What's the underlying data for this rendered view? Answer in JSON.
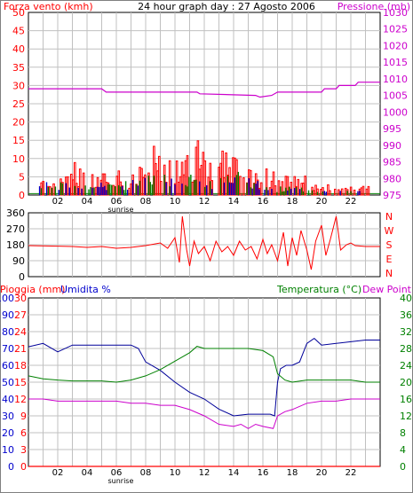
{
  "header": {
    "left": "Forza vento (kmh)",
    "center": "24 hour graph day : 27 Agosto 2006",
    "right": "Pressione (mb)"
  },
  "colors": {
    "wind_gust": "#ff0000",
    "wind_avg": "#0000cc",
    "wind_alt": "#008000",
    "pressure": "#cc00cc",
    "direction": "#ff0000",
    "rain": "#ff0000",
    "humidity": "#000099",
    "temperature": "#008000",
    "dewpoint": "#cc00cc",
    "grid": "#c0c0c0",
    "axis_red": "#ff0000",
    "axis_blue": "#0000cc",
    "axis_green": "#008000",
    "axis_mag": "#cc00cc"
  },
  "x_axis": {
    "tick_labels": [
      "02",
      "04",
      "06",
      "08",
      "10",
      "12",
      "14",
      "16",
      "18",
      "20",
      "22"
    ],
    "sunrise_label": "sunrise"
  },
  "chart_data": [
    {
      "type": "bar",
      "name": "wind-pressure",
      "left_axis": {
        "ticks": [
          "0",
          "5",
          "10",
          "15",
          "20",
          "25",
          "30",
          "35",
          "40",
          "45",
          "50"
        ],
        "ylim": [
          0,
          50
        ]
      },
      "right_axis": {
        "ticks": [
          "975",
          "980",
          "985",
          "990",
          "995",
          "1000",
          "1005",
          "1010",
          "1015",
          "1020",
          "1025",
          "1030"
        ],
        "ylim": [
          975,
          1030
        ]
      },
      "pressure_series": [
        [
          0,
          1007
        ],
        [
          5,
          1007
        ],
        [
          5.3,
          1006
        ],
        [
          11.5,
          1006
        ],
        [
          11.7,
          1005.5
        ],
        [
          15.5,
          1005
        ],
        [
          15.8,
          1004.5
        ],
        [
          16.6,
          1005
        ],
        [
          17,
          1006
        ],
        [
          20,
          1006
        ],
        [
          20.2,
          1007
        ],
        [
          21,
          1007
        ],
        [
          21.2,
          1008
        ],
        [
          22.3,
          1008
        ],
        [
          22.5,
          1009
        ],
        [
          24,
          1009
        ]
      ],
      "gust_profile": [
        [
          2.2,
          5
        ],
        [
          2.6,
          5
        ],
        [
          2.9,
          6
        ],
        [
          3.2,
          8
        ],
        [
          3.6,
          6
        ],
        [
          4,
          5
        ],
        [
          4.4,
          6
        ],
        [
          5.3,
          5
        ],
        [
          6.2,
          6
        ],
        [
          6.6,
          5
        ],
        [
          7.3,
          7
        ],
        [
          7.8,
          8
        ],
        [
          8.3,
          10
        ],
        [
          8.8,
          13
        ],
        [
          9.2,
          12
        ],
        [
          9.6,
          11
        ],
        [
          10.1,
          8
        ],
        [
          10.6,
          9
        ],
        [
          11,
          11
        ],
        [
          11.4,
          13
        ],
        [
          11.8,
          12
        ],
        [
          12.3,
          9
        ],
        [
          12.7,
          10
        ],
        [
          13.2,
          11
        ],
        [
          13.6,
          12
        ],
        [
          14,
          10
        ],
        [
          14.4,
          8
        ],
        [
          14.8,
          9
        ],
        [
          15.3,
          7
        ],
        [
          15.7,
          6
        ],
        [
          16.2,
          7
        ],
        [
          17,
          6
        ],
        [
          17.5,
          5
        ],
        [
          18,
          6
        ],
        [
          18.5,
          5
        ],
        [
          19.2,
          4
        ],
        [
          19.8,
          3
        ],
        [
          21,
          2
        ],
        [
          22,
          2
        ],
        [
          22.6,
          2
        ]
      ],
      "avg_profile": [
        [
          3,
          3
        ],
        [
          3.5,
          4
        ],
        [
          4,
          3
        ],
        [
          4.5,
          3
        ],
        [
          6,
          3
        ],
        [
          7.5,
          4
        ],
        [
          8.5,
          5
        ],
        [
          9.2,
          6
        ],
        [
          9.8,
          5
        ],
        [
          10.5,
          4
        ],
        [
          11.2,
          6
        ],
        [
          11.8,
          5
        ],
        [
          12.5,
          4
        ],
        [
          13.2,
          5
        ],
        [
          13.8,
          6
        ],
        [
          14.5,
          5
        ],
        [
          15.2,
          4
        ],
        [
          16,
          3
        ],
        [
          16.8,
          2
        ],
        [
          17.5,
          2
        ],
        [
          18.5,
          2
        ],
        [
          20,
          1
        ]
      ]
    },
    {
      "type": "line",
      "name": "wind-direction",
      "left_axis": {
        "ticks": [
          "0",
          "90",
          "180",
          "270",
          "360"
        ],
        "ylim": [
          0,
          360
        ]
      },
      "right_axis": {
        "ticks": [
          "N",
          "W",
          "S",
          "E",
          "N"
        ]
      },
      "series": [
        [
          0,
          175
        ],
        [
          2,
          172
        ],
        [
          3,
          170
        ],
        [
          4,
          165
        ],
        [
          5,
          170
        ],
        [
          6,
          160
        ],
        [
          7,
          165
        ],
        [
          8,
          175
        ],
        [
          9,
          190
        ],
        [
          9.5,
          160
        ],
        [
          10,
          220
        ],
        [
          10.3,
          80
        ],
        [
          10.5,
          340
        ],
        [
          10.8,
          150
        ],
        [
          11,
          60
        ],
        [
          11.3,
          200
        ],
        [
          11.6,
          130
        ],
        [
          12,
          170
        ],
        [
          12.4,
          90
        ],
        [
          12.8,
          200
        ],
        [
          13.2,
          140
        ],
        [
          13.6,
          170
        ],
        [
          14,
          120
        ],
        [
          14.4,
          200
        ],
        [
          14.8,
          150
        ],
        [
          15.2,
          170
        ],
        [
          15.6,
          100
        ],
        [
          16,
          210
        ],
        [
          16.3,
          130
        ],
        [
          16.6,
          180
        ],
        [
          17,
          90
        ],
        [
          17.4,
          250
        ],
        [
          17.7,
          60
        ],
        [
          18,
          220
        ],
        [
          18.3,
          120
        ],
        [
          18.6,
          260
        ],
        [
          19,
          150
        ],
        [
          19.3,
          40
        ],
        [
          19.6,
          200
        ],
        [
          20,
          290
        ],
        [
          20.3,
          120
        ],
        [
          20.6,
          210
        ],
        [
          21,
          340
        ],
        [
          21.3,
          150
        ],
        [
          21.7,
          180
        ],
        [
          22,
          190
        ],
        [
          22.3,
          175
        ],
        [
          23,
          170
        ],
        [
          24,
          170
        ]
      ]
    },
    {
      "type": "line",
      "name": "rain-humidity-temperature",
      "title_left_1": "Pioggia (mm)",
      "title_left_2": "Umidita %",
      "title_right_1": "Temperatura (°C)",
      "title_right_2": "Dew Point",
      "rain_axis": {
        "ticks": [
          "0",
          "3",
          "6",
          "9",
          "12",
          "15",
          "18",
          "21",
          "24",
          "27",
          "30"
        ],
        "ylim": [
          0,
          30
        ]
      },
      "humidity_axis": {
        "ticks": [
          "0",
          "10",
          "20",
          "30",
          "40",
          "50",
          "60",
          "70",
          "80",
          "90",
          "100"
        ],
        "ylim": [
          0,
          100
        ]
      },
      "temp_axis": {
        "ticks": [
          "0",
          "4",
          "8",
          "12",
          "16",
          "20",
          "24",
          "28",
          "32",
          "36",
          "40"
        ],
        "ylim": [
          0,
          40
        ]
      },
      "rain_series": [
        [
          0,
          0
        ],
        [
          24,
          0
        ]
      ],
      "humidity_series": [
        [
          0,
          71
        ],
        [
          1,
          73
        ],
        [
          2,
          68
        ],
        [
          3,
          72
        ],
        [
          4,
          72
        ],
        [
          5,
          72
        ],
        [
          6,
          72
        ],
        [
          7,
          72
        ],
        [
          7.5,
          70
        ],
        [
          8,
          62
        ],
        [
          9,
          57
        ],
        [
          10,
          50
        ],
        [
          11,
          44
        ],
        [
          12,
          40
        ],
        [
          13,
          34
        ],
        [
          14,
          30
        ],
        [
          15,
          31
        ],
        [
          15.5,
          31
        ],
        [
          16,
          31
        ],
        [
          16.5,
          31
        ],
        [
          16.8,
          30
        ],
        [
          17,
          50
        ],
        [
          17.2,
          58
        ],
        [
          17.6,
          60
        ],
        [
          18,
          60
        ],
        [
          18.5,
          62
        ],
        [
          19,
          73
        ],
        [
          19.5,
          76
        ],
        [
          20,
          72
        ],
        [
          21,
          73
        ],
        [
          22,
          74
        ],
        [
          23,
          75
        ],
        [
          24,
          75
        ]
      ],
      "temperature_series": [
        [
          0,
          21.5
        ],
        [
          1,
          20.8
        ],
        [
          2,
          20.5
        ],
        [
          3,
          20.3
        ],
        [
          4,
          20.3
        ],
        [
          5,
          20.3
        ],
        [
          6,
          20
        ],
        [
          7,
          20.5
        ],
        [
          8,
          21.5
        ],
        [
          9,
          23
        ],
        [
          10,
          25
        ],
        [
          11,
          27
        ],
        [
          11.5,
          28.5
        ],
        [
          12,
          28
        ],
        [
          13,
          28
        ],
        [
          14,
          28
        ],
        [
          15,
          28
        ],
        [
          16,
          27.5
        ],
        [
          16.7,
          26
        ],
        [
          17,
          22
        ],
        [
          17.5,
          20.5
        ],
        [
          18,
          20
        ],
        [
          19,
          20.5
        ],
        [
          20,
          20.5
        ],
        [
          21,
          20.5
        ],
        [
          22,
          20.5
        ],
        [
          23,
          20
        ],
        [
          24,
          20
        ]
      ],
      "dewpoint_series": [
        [
          0,
          16
        ],
        [
          1,
          16
        ],
        [
          2,
          15.5
        ],
        [
          3,
          15.5
        ],
        [
          4,
          15.5
        ],
        [
          5,
          15.5
        ],
        [
          6,
          15.5
        ],
        [
          7,
          15
        ],
        [
          8,
          15
        ],
        [
          9,
          14.5
        ],
        [
          10,
          14.5
        ],
        [
          11,
          13.5
        ],
        [
          12,
          12
        ],
        [
          13,
          10
        ],
        [
          14,
          9.5
        ],
        [
          14.5,
          10
        ],
        [
          15,
          9
        ],
        [
          15.5,
          10
        ],
        [
          16,
          9.5
        ],
        [
          16.7,
          9
        ],
        [
          17,
          12
        ],
        [
          17.5,
          13
        ],
        [
          18,
          13.5
        ],
        [
          19,
          15
        ],
        [
          20,
          15.5
        ],
        [
          21,
          15.5
        ],
        [
          22,
          16
        ],
        [
          23,
          16
        ],
        [
          24,
          16
        ]
      ]
    }
  ]
}
